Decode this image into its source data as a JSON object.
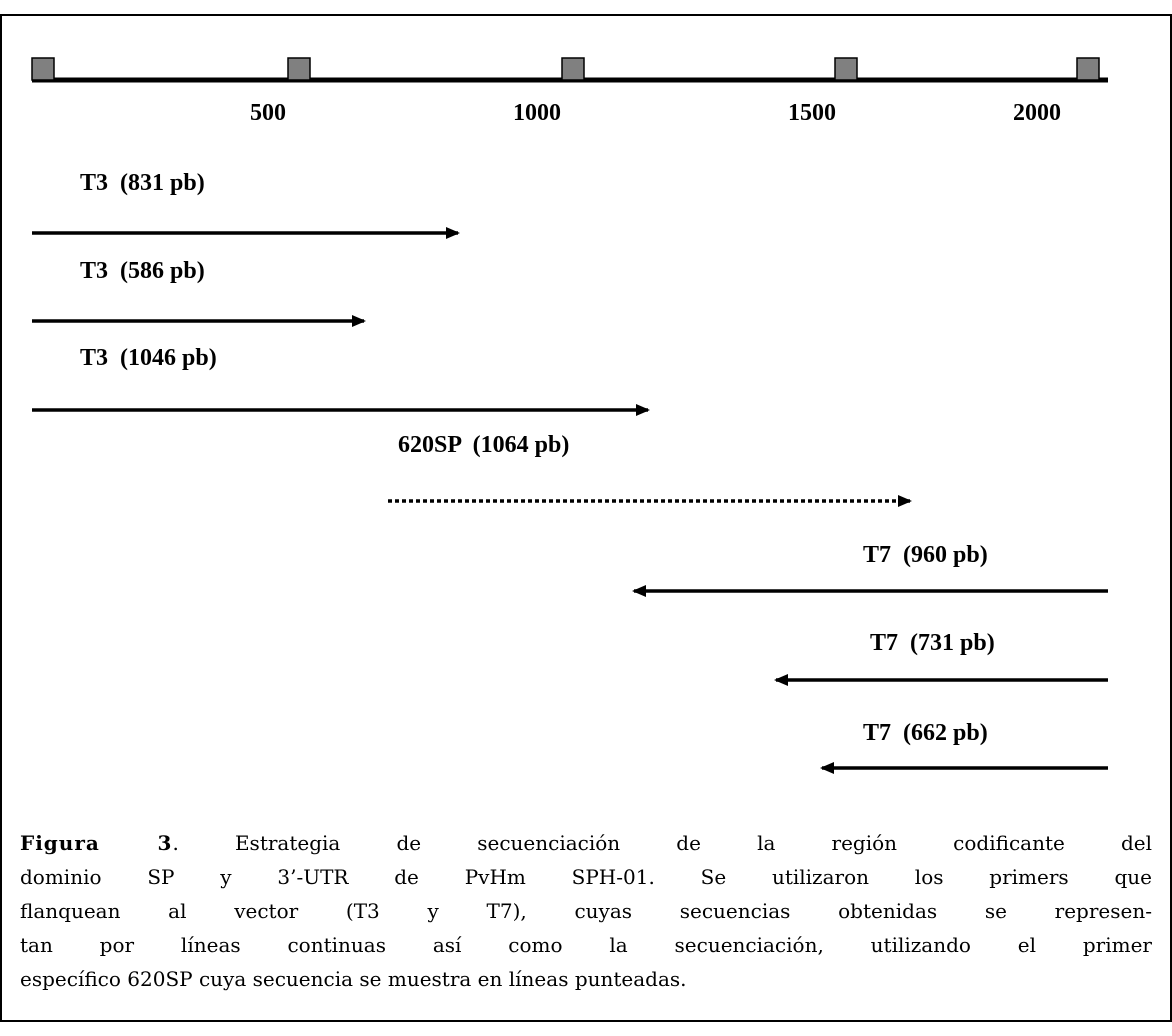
{
  "scale": {
    "labels": [
      "500",
      "1000",
      "1500",
      "2000"
    ]
  },
  "reads": [
    {
      "label": "T3  (831 pb)"
    },
    {
      "label": "T3  (586 pb)"
    },
    {
      "label": "T3  (1046 pb)"
    },
    {
      "label": "620SP  (1064 pb)"
    },
    {
      "label": "T7  (960 pb)"
    },
    {
      "label": "T7  (731 pb)"
    },
    {
      "label": "T7  (662 pb)"
    }
  ],
  "caption": {
    "label": "Figura 3",
    "lines": [
      ". Estrategia de secuenciación de la región codificante del",
      "dominio SP y 3’-UTR de PvHm SPH-01. Se utilizaron los primers que",
      "flanquean al vector (T3 y T7), cuyas secuencias obtenidas se represen-",
      "tan por líneas continuas así como la secuenciación, utilizando el primer",
      "específico 620SP cuya secuencia se muestra en líneas punteadas."
    ]
  }
}
